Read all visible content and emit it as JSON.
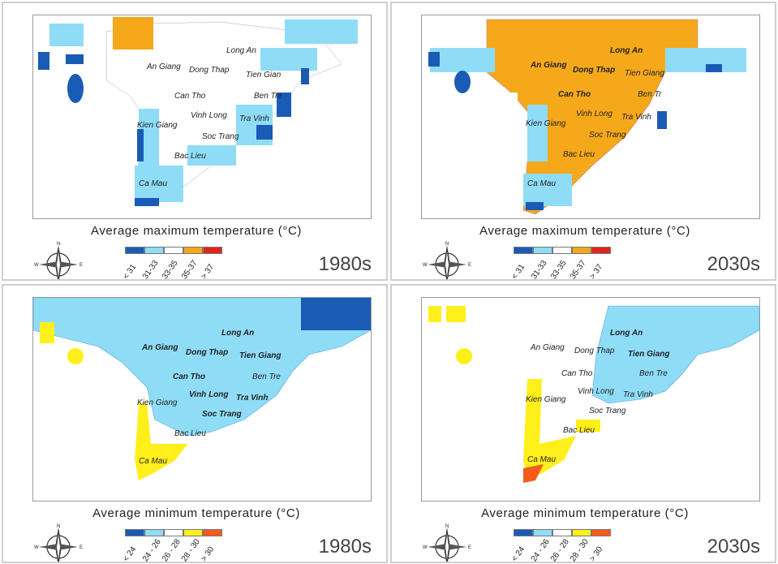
{
  "panels": [
    {
      "id": "tl",
      "caption": "Average maximum temperature (°C)",
      "decade": "1980s",
      "legend": {
        "colors": [
          "#1a5bb5",
          "#8fdcf7",
          "#ffffff",
          "#f5a81a",
          "#e3231c"
        ],
        "labels": [
          "< 31",
          "31-33",
          "33-35",
          "35-37",
          "> 37"
        ]
      },
      "fill": "#ffffff"
    },
    {
      "id": "tr",
      "caption": "Average maximum temperature (°C)",
      "decade": "2030s",
      "legend": {
        "colors": [
          "#1a5bb5",
          "#8fdcf7",
          "#ffffff",
          "#f5a81a",
          "#e3231c"
        ],
        "labels": [
          "< 31",
          "31-33",
          "33-35",
          "35-37",
          "> 37"
        ]
      },
      "fill": "#f5a81a"
    },
    {
      "id": "bl",
      "caption": "Average minimum temperature (°C)",
      "decade": "1980s",
      "legend": {
        "colors": [
          "#1a5bb5",
          "#8fdcf7",
          "#ffffff",
          "#ffef1a",
          "#f55a1a"
        ],
        "labels": [
          "< 24",
          "24 - 26",
          "26 - 28",
          "28 - 30",
          "> 30"
        ]
      },
      "fill": "#8fdcf7"
    },
    {
      "id": "br",
      "caption": "Average minimum temperature (°C)",
      "decade": "2030s",
      "legend": {
        "colors": [
          "#1a5bb5",
          "#8fdcf7",
          "#ffffff",
          "#ffef1a",
          "#f55a1a"
        ],
        "labels": [
          "< 24",
          "24 - 26",
          "26 - 28",
          "28 - 30",
          "> 30"
        ]
      },
      "fill": "#ffffff"
    }
  ],
  "provinces": {
    "long_an": "Long An",
    "an_giang": "An Giang",
    "dong_thap": "Dong Thap",
    "tien_giang": "Tien Giang",
    "tien_giang_tl": "Tien Gian",
    "can_tho": "Can Tho",
    "ben_tre": "Ben Tre",
    "ben_tre_tr": "Ben Tr",
    "vinh_long": "Vinh Long",
    "tra_vinh": "Tra Vinh",
    "kien_giang": "Kien Giang",
    "soc_trang": "Soc Trang",
    "bac_lieu": "Bac Lieu",
    "ca_mau": "Ca Mau"
  },
  "compass": {
    "n": "N",
    "s": "S",
    "e": "E",
    "w": "W"
  }
}
